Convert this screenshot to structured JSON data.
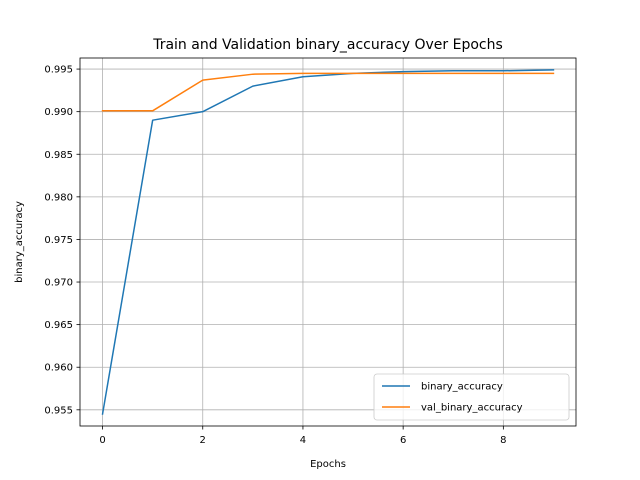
{
  "chart_data": {
    "type": "line",
    "title": "Train and Validation binary_accuracy Over Epochs",
    "xlabel": "Epochs",
    "ylabel": "binary_accuracy",
    "x": [
      0,
      1,
      2,
      3,
      4,
      5,
      6,
      7,
      8,
      9
    ],
    "xlim": [
      -0.45,
      9.45
    ],
    "ylim": [
      0.9531,
      0.9963
    ],
    "xticks": [
      0,
      2,
      4,
      6,
      8
    ],
    "yticks": [
      0.955,
      0.96,
      0.965,
      0.97,
      0.975,
      0.98,
      0.985,
      0.99,
      0.995
    ],
    "grid": true,
    "legend_position": "lower-right",
    "series": [
      {
        "name": "binary_accuracy",
        "color": "#1f77b4",
        "values": [
          0.9545,
          0.989,
          0.99,
          0.993,
          0.9941,
          0.9945,
          0.9947,
          0.9948,
          0.9948,
          0.9949
        ]
      },
      {
        "name": "val_binary_accuracy",
        "color": "#ff7f0e",
        "values": [
          0.9901,
          0.9901,
          0.9937,
          0.9944,
          0.9945,
          0.9945,
          0.9945,
          0.9945,
          0.9945,
          0.9945
        ]
      }
    ]
  }
}
